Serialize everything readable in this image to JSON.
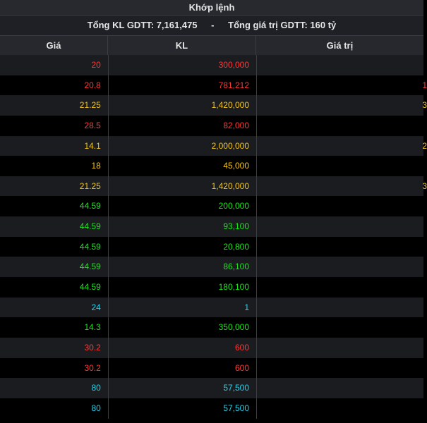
{
  "title": "Khớp lệnh",
  "summary": {
    "total_volume": "Tổng KL GDTT: 7,161,475",
    "separator": "-",
    "total_value": "Tổng giá trị GDTT: 160 tỷ"
  },
  "columns": {
    "price": "Giá",
    "volume": "KL",
    "value": "Giá trị"
  },
  "colors": {
    "red": "#ff3737",
    "yellow": "#f5c518",
    "green": "#19e619",
    "cyan": "#22d3ee"
  },
  "rows": [
    {
      "price": "20",
      "volume": "300,000",
      "value": "",
      "color": "red"
    },
    {
      "price": "20.8",
      "volume": "781,212",
      "value": "1",
      "color": "red"
    },
    {
      "price": "21.25",
      "volume": "1,420,000",
      "value": "3",
      "color": "yellow"
    },
    {
      "price": "28.5",
      "volume": "82,000",
      "value": "",
      "color": "red"
    },
    {
      "price": "14.1",
      "volume": "2,000,000",
      "value": "2",
      "color": "yellow"
    },
    {
      "price": "18",
      "volume": "45,000",
      "value": "",
      "color": "yellow"
    },
    {
      "price": "21.25",
      "volume": "1,420,000",
      "value": "3",
      "color": "yellow"
    },
    {
      "price": "44.59",
      "volume": "200,000",
      "value": "",
      "color": "green"
    },
    {
      "price": "44.59",
      "volume": "93,100",
      "value": "",
      "color": "green"
    },
    {
      "price": "44.59",
      "volume": "20,800",
      "value": "",
      "color": "green"
    },
    {
      "price": "44.59",
      "volume": "86,100",
      "value": "",
      "color": "green"
    },
    {
      "price": "44.59",
      "volume": "180,100",
      "value": "",
      "color": "green"
    },
    {
      "price": "24",
      "volume": "1",
      "value": "",
      "color": "cyan"
    },
    {
      "price": "14.3",
      "volume": "350,000",
      "value": "",
      "color": "green"
    },
    {
      "price": "30.2",
      "volume": "600",
      "value": "",
      "color": "red"
    },
    {
      "price": "30.2",
      "volume": "600",
      "value": "",
      "color": "red"
    },
    {
      "price": "80",
      "volume": "57,500",
      "value": "",
      "color": "cyan"
    },
    {
      "price": "80",
      "volume": "57,500",
      "value": "",
      "color": "cyan"
    }
  ]
}
